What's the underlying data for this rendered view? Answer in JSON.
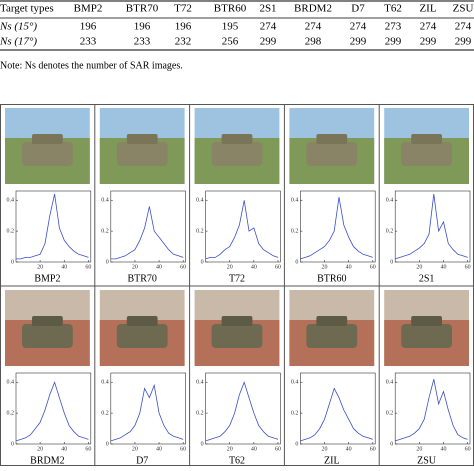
{
  "table": {
    "header": [
      "Target types",
      "BMP2",
      "BTR70",
      "T72",
      "BTR60",
      "2S1",
      "BRDM2",
      "D7",
      "T62",
      "ZIL",
      "ZSU"
    ],
    "rows": [
      [
        "Ns (15°)",
        "196",
        "196",
        "196",
        "195",
        "274",
        "274",
        "274",
        "273",
        "274",
        "274"
      ],
      [
        "Ns (17°)",
        "233",
        "233",
        "232",
        "256",
        "299",
        "298",
        "299",
        "299",
        "299",
        "299"
      ]
    ]
  },
  "note": "Note: Ns denotes the number of SAR images.",
  "plot_axes": {
    "xlim": [
      0,
      62
    ],
    "ylim": [
      0,
      0.46
    ],
    "xticks": [
      20,
      40,
      60
    ],
    "yticks": [
      0,
      0.2,
      0.4
    ],
    "x": [
      0,
      4,
      8,
      12,
      16,
      20,
      24,
      28,
      32,
      36,
      40,
      44,
      48,
      52,
      56,
      60
    ]
  },
  "panels": [
    {
      "label": "BMP2",
      "values": [
        0.02,
        0.02,
        0.03,
        0.03,
        0.04,
        0.05,
        0.12,
        0.3,
        0.44,
        0.22,
        0.14,
        0.1,
        0.07,
        0.05,
        0.04,
        0.03
      ]
    },
    {
      "label": "BTR70",
      "values": [
        0.02,
        0.02,
        0.03,
        0.04,
        0.06,
        0.08,
        0.14,
        0.22,
        0.36,
        0.2,
        0.16,
        0.12,
        0.08,
        0.05,
        0.04,
        0.03
      ]
    },
    {
      "label": "T72",
      "values": [
        0.02,
        0.03,
        0.03,
        0.05,
        0.08,
        0.1,
        0.16,
        0.24,
        0.4,
        0.2,
        0.22,
        0.12,
        0.08,
        0.06,
        0.04,
        0.03
      ]
    },
    {
      "label": "BTR60",
      "values": [
        0.02,
        0.03,
        0.04,
        0.06,
        0.08,
        0.1,
        0.14,
        0.2,
        0.42,
        0.24,
        0.16,
        0.1,
        0.07,
        0.05,
        0.04,
        0.03
      ]
    },
    {
      "label": "2S1",
      "values": [
        0.02,
        0.03,
        0.04,
        0.05,
        0.07,
        0.09,
        0.12,
        0.18,
        0.44,
        0.2,
        0.26,
        0.12,
        0.08,
        0.05,
        0.04,
        0.03
      ]
    },
    {
      "label": "BRDM2",
      "values": [
        0.02,
        0.03,
        0.04,
        0.06,
        0.1,
        0.14,
        0.22,
        0.32,
        0.4,
        0.3,
        0.2,
        0.12,
        0.08,
        0.05,
        0.04,
        0.03
      ]
    },
    {
      "label": "D7",
      "values": [
        0.02,
        0.03,
        0.04,
        0.06,
        0.08,
        0.12,
        0.2,
        0.36,
        0.3,
        0.38,
        0.2,
        0.12,
        0.07,
        0.05,
        0.04,
        0.03
      ]
    },
    {
      "label": "T62",
      "values": [
        0.02,
        0.03,
        0.04,
        0.05,
        0.08,
        0.12,
        0.2,
        0.32,
        0.4,
        0.3,
        0.2,
        0.12,
        0.08,
        0.05,
        0.04,
        0.03
      ]
    },
    {
      "label": "ZIL",
      "values": [
        0.02,
        0.03,
        0.04,
        0.06,
        0.1,
        0.16,
        0.26,
        0.36,
        0.3,
        0.22,
        0.16,
        0.1,
        0.07,
        0.05,
        0.04,
        0.03
      ]
    },
    {
      "label": "ZSU",
      "values": [
        0.02,
        0.03,
        0.04,
        0.05,
        0.07,
        0.1,
        0.16,
        0.3,
        0.42,
        0.26,
        0.34,
        0.22,
        0.12,
        0.06,
        0.04,
        0.03
      ]
    }
  ]
}
